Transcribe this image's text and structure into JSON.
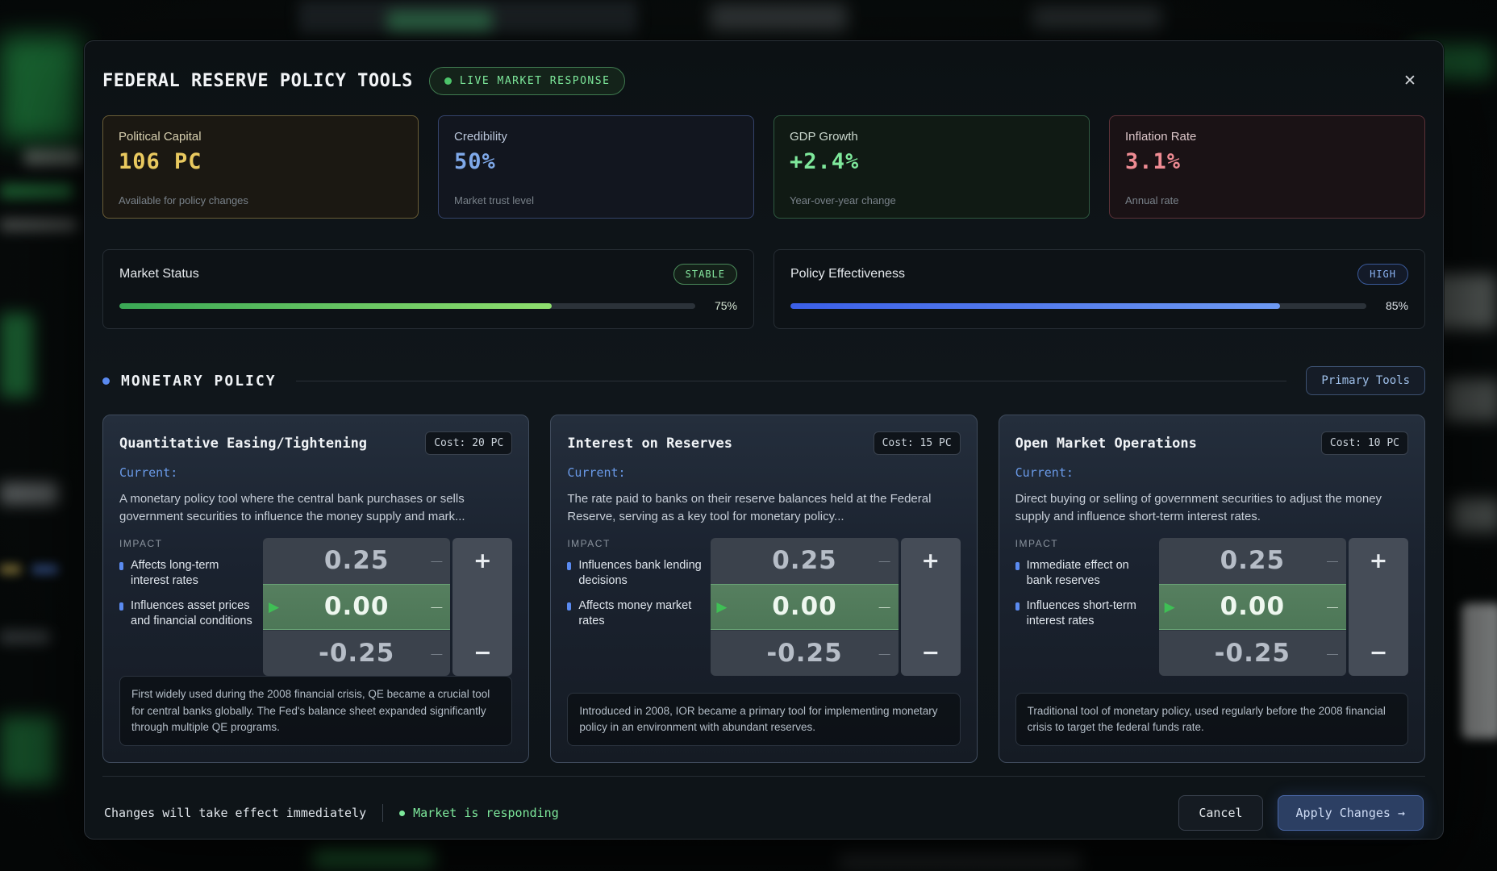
{
  "theme": {
    "accent_green": "#7de89b",
    "accent_blue": "#5a8af0"
  },
  "icons": {
    "close": "✕",
    "selected_arrow": "▶"
  },
  "header": {
    "title": "FEDERAL RESERVE POLICY TOOLS",
    "live_badge": "LIVE MARKET RESPONSE"
  },
  "stats": [
    {
      "label": "Political Capital",
      "value": "106 PC",
      "sub": "Available for policy changes",
      "label_color": "#d8d0b0",
      "accent": "#e9c95f",
      "border": "#6a5d36",
      "bg": "#1b1812"
    },
    {
      "label": "Credibility",
      "value": "50%",
      "sub": "Market trust level",
      "label_color": "#bcc8dc",
      "accent": "#7fa9ea",
      "border": "#34436b",
      "bg": "#12161f"
    },
    {
      "label": "GDP Growth",
      "value": "+2.4%",
      "sub": "Year-over-year change",
      "label_color": "#c9d6cc",
      "accent": "#7ee89b",
      "border": "#2f5a40",
      "bg": "#101a14"
    },
    {
      "label": "Inflation Rate",
      "value": "3.1%",
      "sub": "Annual rate",
      "label_color": "#dcc6c9",
      "accent": "#ef8b93",
      "border": "#5c3138",
      "bg": "#1a1215"
    }
  ],
  "gauges": [
    {
      "label": "Market Status",
      "badge": "STABLE",
      "badge_color": "#86e8a0",
      "badge_border": "#4a8a5a",
      "badge_bg": "#142019",
      "pct": 75,
      "pct_label": "75%",
      "pct_color": "#d6e6d4",
      "bar_from": "#3aa855",
      "bar_to": "#8ede6e"
    },
    {
      "label": "Policy Effectiveness",
      "badge": "HIGH",
      "badge_color": "#8ab2f2",
      "badge_border": "#3a5a9a",
      "badge_bg": "#131a28",
      "pct": 85,
      "pct_label": "85%",
      "pct_color": "#dfe4ea",
      "bar_from": "#3b5fe8",
      "bar_to": "#6e9af2"
    }
  ],
  "section": {
    "title": "MONETARY POLICY",
    "tools_button": "Primary Tools"
  },
  "stepper": {
    "increase": "+",
    "decrease": "−",
    "option_dash": "—"
  },
  "tools": [
    {
      "title": "Quantitative Easing/Tightening",
      "cost": "Cost: 20 PC",
      "current_label": "Current:",
      "description": "A monetary policy tool where the central bank purchases or sells government securities to influence the money supply and mark...",
      "impact_label": "IMPACT",
      "impacts": [
        "Affects long-term interest rates",
        "Influences asset prices and financial conditions"
      ],
      "values": [
        "0.25",
        "0.00",
        "-0.25"
      ],
      "history_note": "First widely used during the 2008 financial crisis, QE became a crucial tool for central banks globally. The Fed's balance sheet expanded significantly through multiple QE programs."
    },
    {
      "title": "Interest on Reserves",
      "cost": "Cost: 15 PC",
      "current_label": "Current:",
      "description": "The rate paid to banks on their reserve balances held at the Federal Reserve, serving as a key tool for monetary policy...",
      "impact_label": "IMPACT",
      "impacts": [
        "Influences bank lending decisions",
        "Affects money market rates"
      ],
      "values": [
        "0.25",
        "0.00",
        "-0.25"
      ],
      "history_note": "Introduced in 2008, IOR became a primary tool for implementing monetary policy in an environment with abundant reserves."
    },
    {
      "title": "Open Market Operations",
      "cost": "Cost: 10 PC",
      "current_label": "Current:",
      "description": "Direct buying or selling of government securities to adjust the money supply and influence short-term interest rates.",
      "impact_label": "IMPACT",
      "impacts": [
        "Immediate effect on bank reserves",
        "Influences short-term interest rates"
      ],
      "values": [
        "0.25",
        "0.00",
        "-0.25"
      ],
      "history_note": "Traditional tool of monetary policy, used regularly before the 2008 financial crisis to target the federal funds rate."
    }
  ],
  "footer": {
    "note": "Changes will take effect immediately",
    "status": "Market is responding",
    "cancel_label": "Cancel",
    "apply_label": "Apply Changes →"
  }
}
